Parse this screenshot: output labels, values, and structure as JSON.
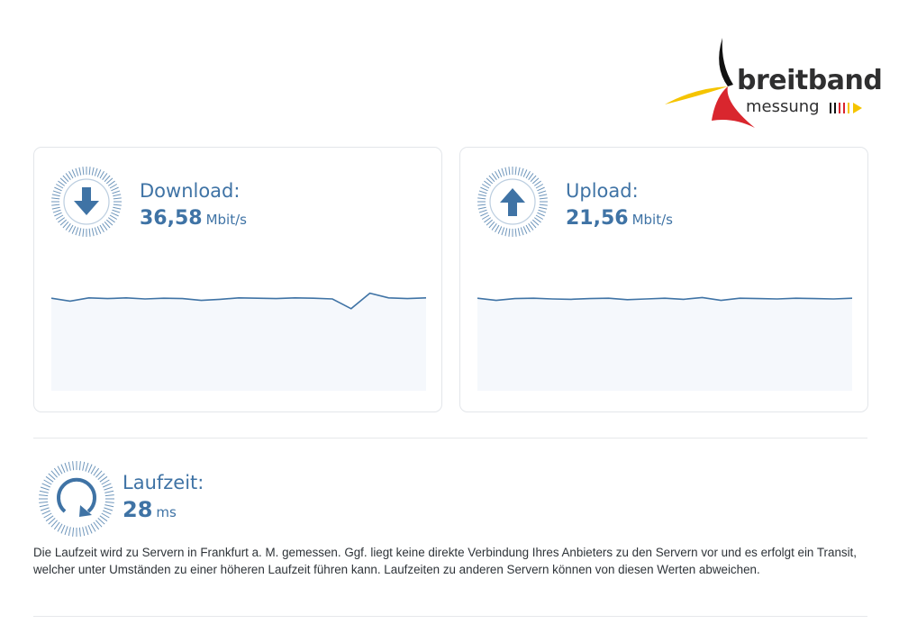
{
  "logo": {
    "word1": "breitband",
    "word2": "messung"
  },
  "colors": {
    "accent": "#3f73a5",
    "border": "#e3e6ea",
    "text": "#2e3338",
    "chart_fill": "#f5f8fc"
  },
  "download": {
    "label": "Download:",
    "value": "36,58",
    "unit": "Mbit/s",
    "icon": "arrow-down-icon",
    "series": [
      0.72,
      0.64,
      0.73,
      0.71,
      0.73,
      0.7,
      0.72,
      0.71,
      0.66,
      0.69,
      0.73,
      0.72,
      0.71,
      0.73,
      0.72,
      0.7,
      0.43,
      0.86,
      0.73,
      0.71,
      0.73
    ]
  },
  "upload": {
    "label": "Upload:",
    "value": "21,56",
    "unit": "Mbit/s",
    "icon": "arrow-up-icon",
    "series": [
      0.72,
      0.66,
      0.71,
      0.72,
      0.7,
      0.69,
      0.71,
      0.72,
      0.68,
      0.7,
      0.72,
      0.69,
      0.74,
      0.66,
      0.72,
      0.71,
      0.7,
      0.72,
      0.71,
      0.7,
      0.72
    ]
  },
  "latency": {
    "label": "Laufzeit:",
    "value": "28",
    "unit": "ms",
    "icon": "refresh-icon"
  },
  "note": "Die Laufzeit wird zu Servern in Frankfurt a. M. gemessen. Ggf. liegt keine direkte Verbindung Ihres Anbieters zu den Servern vor und es erfolgt ein Transit, welcher unter Umständen zu einer höheren Laufzeit führen kann. Laufzeiten zu anderen Servern können von diesen Werten abweichen."
}
